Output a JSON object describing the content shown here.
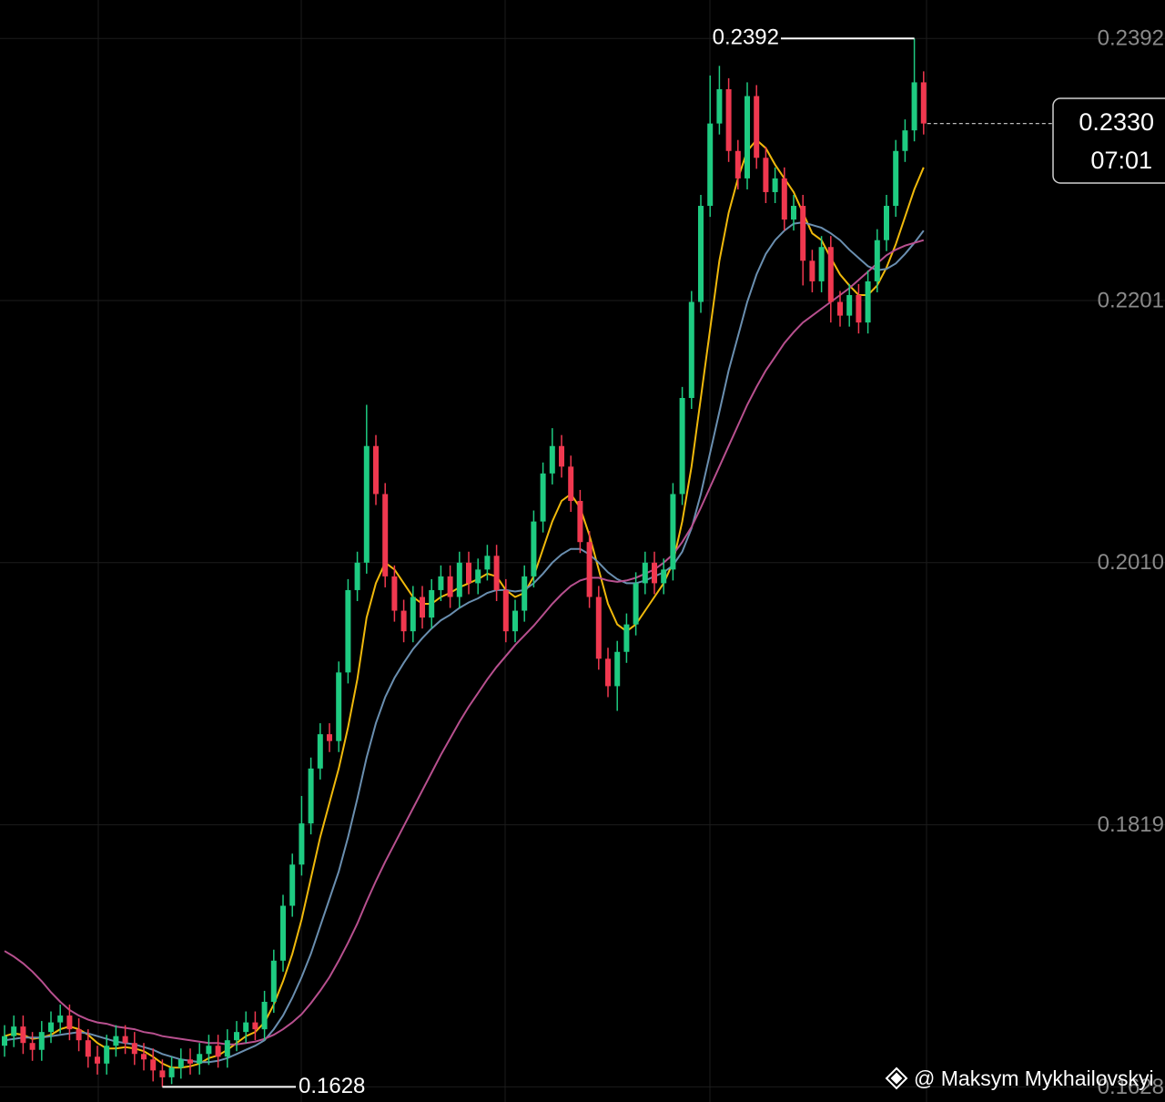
{
  "chart_data": {
    "type": "candlestick",
    "ylim": [
      0.1617,
      0.242
    ],
    "yticks": [
      0.2392,
      0.2201,
      {
        "value": 0.201,
        "label": "0.2010"
      },
      0.1819,
      0.1628
    ],
    "grid": true,
    "up_color": "#1ecb81",
    "down_color": "#f0384f",
    "ohlc": [
      [
        0.1658,
        0.1673,
        0.165,
        0.1665
      ],
      [
        0.1665,
        0.168,
        0.1657,
        0.1672
      ],
      [
        0.1672,
        0.168,
        0.1652,
        0.166
      ],
      [
        0.166,
        0.1668,
        0.1647,
        0.1655
      ],
      [
        0.1655,
        0.1676,
        0.1647,
        0.1668
      ],
      [
        0.1668,
        0.1683,
        0.166,
        0.1675
      ],
      [
        0.1675,
        0.1688,
        0.1667,
        0.168
      ],
      [
        0.168,
        0.1688,
        0.1662,
        0.167
      ],
      [
        0.167,
        0.1678,
        0.1654,
        0.1662
      ],
      [
        0.1662,
        0.167,
        0.1642,
        0.165
      ],
      [
        0.165,
        0.1658,
        0.1637,
        0.1645
      ],
      [
        0.1645,
        0.1666,
        0.1637,
        0.1658
      ],
      [
        0.1658,
        0.1673,
        0.165,
        0.1665
      ],
      [
        0.1665,
        0.1673,
        0.1652,
        0.166
      ],
      [
        0.166,
        0.1668,
        0.1644,
        0.1652
      ],
      [
        0.1652,
        0.166,
        0.164,
        0.1648
      ],
      [
        0.1648,
        0.1656,
        0.1632,
        0.164
      ],
      [
        0.164,
        0.1648,
        0.1628,
        0.1635
      ],
      [
        0.1635,
        0.165,
        0.163,
        0.1642
      ],
      [
        0.1642,
        0.1656,
        0.1634,
        0.1648
      ],
      [
        0.1648,
        0.1656,
        0.1637,
        0.1645
      ],
      [
        0.1645,
        0.166,
        0.1637,
        0.1652
      ],
      [
        0.1652,
        0.1666,
        0.1644,
        0.1658
      ],
      [
        0.1658,
        0.1666,
        0.1642,
        0.165
      ],
      [
        0.165,
        0.167,
        0.1642,
        0.1662
      ],
      [
        0.1662,
        0.1676,
        0.1654,
        0.1668
      ],
      [
        0.1668,
        0.1683,
        0.166,
        0.1675
      ],
      [
        0.1675,
        0.1683,
        0.1662,
        0.167
      ],
      [
        0.167,
        0.1698,
        0.1662,
        0.169
      ],
      [
        0.169,
        0.1728,
        0.1682,
        0.172
      ],
      [
        0.172,
        0.1768,
        0.1712,
        0.176
      ],
      [
        0.176,
        0.1798,
        0.1752,
        0.179
      ],
      [
        0.179,
        0.184,
        0.1782,
        0.182
      ],
      [
        0.182,
        0.1868,
        0.1812,
        0.186
      ],
      [
        0.186,
        0.1893,
        0.1852,
        0.1885
      ],
      [
        0.1885,
        0.1893,
        0.1872,
        0.188
      ],
      [
        0.188,
        0.1938,
        0.1872,
        0.193
      ],
      [
        0.193,
        0.1998,
        0.1922,
        0.199
      ],
      [
        0.199,
        0.2018,
        0.1982,
        0.201
      ],
      [
        0.201,
        0.2125,
        0.2002,
        0.2095
      ],
      [
        0.2095,
        0.2103,
        0.2052,
        0.206
      ],
      [
        0.206,
        0.2068,
        0.1992,
        0.2
      ],
      [
        0.2,
        0.2008,
        0.1967,
        0.1975
      ],
      [
        0.1975,
        0.1983,
        0.1952,
        0.196
      ],
      [
        0.196,
        0.1993,
        0.1952,
        0.1985
      ],
      [
        0.1985,
        0.1993,
        0.1962,
        0.197
      ],
      [
        0.197,
        0.1998,
        0.1962,
        0.199
      ],
      [
        0.199,
        0.2008,
        0.1982,
        0.2
      ],
      [
        0.2,
        0.2008,
        0.1977,
        0.1985
      ],
      [
        0.1985,
        0.2018,
        0.1977,
        0.201
      ],
      [
        0.201,
        0.2018,
        0.1987,
        0.1995
      ],
      [
        0.1995,
        0.2013,
        0.1987,
        0.2005
      ],
      [
        0.2005,
        0.2023,
        0.1997,
        0.2015
      ],
      [
        0.2015,
        0.2023,
        0.1982,
        0.199
      ],
      [
        0.199,
        0.1998,
        0.1952,
        0.196
      ],
      [
        0.196,
        0.1983,
        0.1952,
        0.1975
      ],
      [
        0.1975,
        0.2008,
        0.1967,
        0.2
      ],
      [
        0.2,
        0.2048,
        0.1992,
        0.204
      ],
      [
        0.204,
        0.2083,
        0.2032,
        0.2075
      ],
      [
        0.2075,
        0.2108,
        0.2067,
        0.2095
      ],
      [
        0.2095,
        0.2103,
        0.2072,
        0.208
      ],
      [
        0.208,
        0.2088,
        0.2047,
        0.2055
      ],
      [
        0.2055,
        0.2063,
        0.2017,
        0.2025
      ],
      [
        0.2025,
        0.2033,
        0.1977,
        0.1985
      ],
      [
        0.1985,
        0.1993,
        0.1932,
        0.194
      ],
      [
        0.194,
        0.1948,
        0.1912,
        0.192
      ],
      [
        0.192,
        0.1953,
        0.1902,
        0.1945
      ],
      [
        0.1945,
        0.1973,
        0.1937,
        0.1965
      ],
      [
        0.1965,
        0.2003,
        0.1957,
        0.1995
      ],
      [
        0.1995,
        0.2018,
        0.1987,
        0.201
      ],
      [
        0.201,
        0.2018,
        0.1987,
        0.1995
      ],
      [
        0.1995,
        0.2013,
        0.1987,
        0.2005
      ],
      [
        0.2005,
        0.2068,
        0.1997,
        0.206
      ],
      [
        0.206,
        0.2138,
        0.2052,
        0.213
      ],
      [
        0.213,
        0.2208,
        0.2122,
        0.22
      ],
      [
        0.22,
        0.2278,
        0.2192,
        0.227
      ],
      [
        0.227,
        0.2365,
        0.2262,
        0.233
      ],
      [
        0.233,
        0.2372,
        0.2322,
        0.2355
      ],
      [
        0.2355,
        0.2363,
        0.2302,
        0.231
      ],
      [
        0.231,
        0.2318,
        0.2282,
        0.229
      ],
      [
        0.229,
        0.236,
        0.2282,
        0.235
      ],
      [
        0.235,
        0.2358,
        0.2297,
        0.2305
      ],
      [
        0.2305,
        0.2313,
        0.2272,
        0.228
      ],
      [
        0.228,
        0.2298,
        0.2272,
        0.229
      ],
      [
        0.229,
        0.2298,
        0.2252,
        0.226
      ],
      [
        0.226,
        0.2278,
        0.2252,
        0.227
      ],
      [
        0.227,
        0.2278,
        0.2212,
        0.223
      ],
      [
        0.223,
        0.2238,
        0.2207,
        0.2215
      ],
      [
        0.2215,
        0.2248,
        0.2207,
        0.224
      ],
      [
        0.224,
        0.2248,
        0.2185,
        0.22
      ],
      [
        0.22,
        0.2208,
        0.2182,
        0.219
      ],
      [
        0.219,
        0.2213,
        0.2182,
        0.2205
      ],
      [
        0.2205,
        0.2213,
        0.2177,
        0.2185
      ],
      [
        0.2185,
        0.2223,
        0.2177,
        0.2215
      ],
      [
        0.2215,
        0.2253,
        0.2207,
        0.2245
      ],
      [
        0.2245,
        0.2278,
        0.2237,
        0.227
      ],
      [
        0.227,
        0.2318,
        0.2262,
        0.231
      ],
      [
        0.231,
        0.2333,
        0.2302,
        0.2325
      ],
      [
        0.2325,
        0.2392,
        0.2317,
        0.236
      ],
      [
        0.236,
        0.2368,
        0.2322,
        0.233
      ]
    ],
    "overlays": [
      {
        "color": "#f0b90b",
        "values": [
          0.1665,
          0.1667,
          0.1666,
          0.1663,
          0.1664,
          0.1666,
          0.167,
          0.1672,
          0.167,
          0.1666,
          0.166,
          0.1656,
          0.1656,
          0.1657,
          0.1656,
          0.1654,
          0.165,
          0.1645,
          0.1642,
          0.1642,
          0.1643,
          0.1645,
          0.1649,
          0.1651,
          0.1655,
          0.166,
          0.1665,
          0.1668,
          0.1675,
          0.1688,
          0.1705,
          0.1725,
          0.175,
          0.178,
          0.181,
          0.1835,
          0.186,
          0.189,
          0.1925,
          0.197,
          0.1995,
          0.201,
          0.2005,
          0.1995,
          0.1985,
          0.198,
          0.198,
          0.1985,
          0.1988,
          0.1992,
          0.1995,
          0.1998,
          0.2002,
          0.2,
          0.199,
          0.1985,
          0.1988,
          0.2,
          0.202,
          0.204,
          0.2055,
          0.206,
          0.205,
          0.203,
          0.2005,
          0.198,
          0.1965,
          0.196,
          0.1965,
          0.1975,
          0.1985,
          0.1995,
          0.201,
          0.204,
          0.208,
          0.213,
          0.218,
          0.223,
          0.2265,
          0.229,
          0.231,
          0.2318,
          0.2312,
          0.23,
          0.229,
          0.228,
          0.2265,
          0.225,
          0.2245,
          0.2232,
          0.222,
          0.2212,
          0.2205,
          0.2205,
          0.2212,
          0.2225,
          0.2242,
          0.2262,
          0.2282,
          0.2298
        ]
      },
      {
        "color": "#6a8fb0",
        "values": [
          0.1662,
          0.1663,
          0.1664,
          0.1664,
          0.1664,
          0.1665,
          0.1666,
          0.1667,
          0.1668,
          0.1667,
          0.1665,
          0.1663,
          0.1661,
          0.166,
          0.1659,
          0.1657,
          0.1655,
          0.1652,
          0.165,
          0.1648,
          0.1647,
          0.1646,
          0.1646,
          0.1647,
          0.1649,
          0.1652,
          0.1655,
          0.1658,
          0.1662,
          0.167,
          0.168,
          0.1693,
          0.1708,
          0.1725,
          0.1745,
          0.1765,
          0.1785,
          0.181,
          0.1838,
          0.1868,
          0.1893,
          0.1912,
          0.1926,
          0.1937,
          0.1947,
          0.1955,
          0.1962,
          0.1968,
          0.1972,
          0.1977,
          0.1981,
          0.1984,
          0.1988,
          0.199,
          0.199,
          0.1989,
          0.199,
          0.1995,
          0.2002,
          0.201,
          0.2016,
          0.202,
          0.202,
          0.2016,
          0.201,
          0.2003,
          0.1998,
          0.1995,
          0.1995,
          0.1997,
          0.2,
          0.2003,
          0.2008,
          0.2018,
          0.2035,
          0.206,
          0.209,
          0.212,
          0.215,
          0.2175,
          0.22,
          0.222,
          0.2235,
          0.2245,
          0.2252,
          0.2257,
          0.2258,
          0.2256,
          0.2254,
          0.225,
          0.2245,
          0.2238,
          0.2232,
          0.2226,
          0.2223,
          0.2224,
          0.2228,
          0.2235,
          0.2243,
          0.2252
        ]
      },
      {
        "color": "#b8508f",
        "values": [
          0.1727,
          0.1723,
          0.1718,
          0.1712,
          0.1705,
          0.1697,
          0.169,
          0.1684,
          0.168,
          0.1677,
          0.1675,
          0.1674,
          0.1672,
          0.1671,
          0.167,
          0.1668,
          0.1667,
          0.1665,
          0.1664,
          0.1663,
          0.1662,
          0.1661,
          0.166,
          0.166,
          0.1659,
          0.1659,
          0.166,
          0.1661,
          0.1663,
          0.1666,
          0.167,
          0.1675,
          0.1681,
          0.1689,
          0.1698,
          0.1708,
          0.172,
          0.1733,
          0.1747,
          0.1763,
          0.1778,
          0.1792,
          0.1805,
          0.1818,
          0.1831,
          0.1844,
          0.1857,
          0.187,
          0.1882,
          0.1894,
          0.1905,
          0.1915,
          0.1925,
          0.1934,
          0.1942,
          0.195,
          0.1957,
          0.1964,
          0.1972,
          0.198,
          0.1987,
          0.1993,
          0.1997,
          0.1999,
          0.1999,
          0.1997,
          0.1996,
          0.1997,
          0.1999,
          0.2002,
          0.2005,
          0.201,
          0.2016,
          0.2025,
          0.2036,
          0.205,
          0.2065,
          0.208,
          0.2095,
          0.211,
          0.2125,
          0.2138,
          0.215,
          0.216,
          0.217,
          0.2178,
          0.2185,
          0.219,
          0.2195,
          0.22,
          0.2205,
          0.221,
          0.2216,
          0.2222,
          0.2228,
          0.2234,
          0.2238,
          0.2241,
          0.2243,
          0.2245
        ]
      }
    ],
    "high": 0.2392,
    "low": 0.1628,
    "last_price": {
      "value": 0.233,
      "label": "0.2330"
    },
    "countdown": "07:01",
    "attribution": "@ Maksym Mykhailovskyi"
  }
}
